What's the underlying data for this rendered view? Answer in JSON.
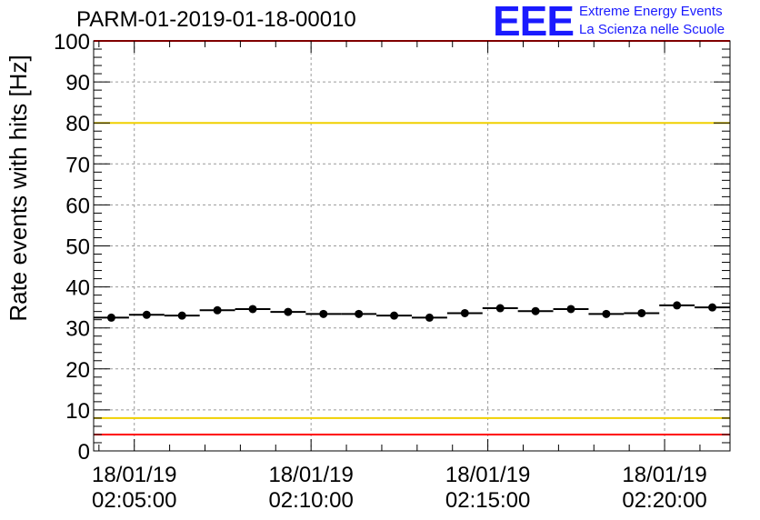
{
  "header": {
    "title": "PARM-01-2019-01-18-00010",
    "logo_text": "EEE",
    "logo_line1": "Extreme Energy Events",
    "logo_line2": "La Scienza nelle Scuole",
    "logo_color": "#1a1aff"
  },
  "chart_data": {
    "type": "scatter",
    "title": "PARM-01-2019-01-18-00010",
    "xlabel": "",
    "ylabel": "Rate events with hits [Hz]",
    "ylim": [
      0,
      100
    ],
    "xlim_minutes": [
      -1.15,
      16.85
    ],
    "grid": true,
    "yticks": [
      0,
      10,
      20,
      30,
      40,
      50,
      60,
      70,
      80,
      90,
      100
    ],
    "xticks": [
      {
        "minute": 0,
        "date": "18/01/19",
        "time": "02:05:00"
      },
      {
        "minute": 5,
        "date": "18/01/19",
        "time": "02:10:00"
      },
      {
        "minute": 10,
        "date": "18/01/19",
        "time": "02:15:00"
      },
      {
        "minute": 15,
        "date": "18/01/19",
        "time": "02:20:00"
      }
    ],
    "bin_width_minutes": 1,
    "series": [
      {
        "name": "rate",
        "x": [
          -0.65,
          0.35,
          1.35,
          2.35,
          3.35,
          4.35,
          5.35,
          6.35,
          7.35,
          8.35,
          9.35,
          10.35,
          11.35,
          12.35,
          13.35,
          14.35,
          15.35,
          16.35
        ],
        "y": [
          32.5,
          33.2,
          33.0,
          34.3,
          34.6,
          33.9,
          33.4,
          33.4,
          33.0,
          32.5,
          33.6,
          34.8,
          34.1,
          34.6,
          33.4,
          33.6,
          35.5,
          35.0
        ]
      }
    ],
    "reference_lines": [
      {
        "y": 100,
        "color": "#ff0000"
      },
      {
        "y": 80,
        "color": "#f0d000"
      },
      {
        "y": 8,
        "color": "#f0d000"
      },
      {
        "y": 4,
        "color": "#ff0000"
      }
    ]
  }
}
